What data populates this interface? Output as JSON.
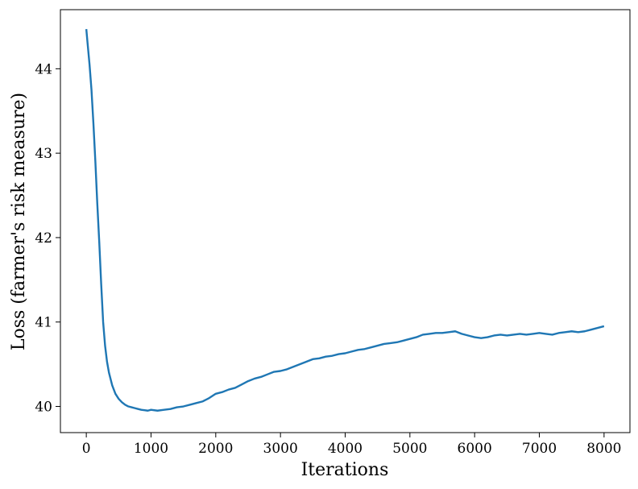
{
  "chart_data": {
    "type": "line",
    "title": "",
    "xlabel": "Iterations",
    "ylabel": "Loss (farmer's risk measure)",
    "xlim": [
      -400,
      8400
    ],
    "ylim": [
      39.69,
      44.7
    ],
    "xticks": [
      0,
      1000,
      2000,
      3000,
      4000,
      5000,
      6000,
      7000,
      8000
    ],
    "yticks": [
      40,
      41,
      42,
      43,
      44
    ],
    "grid": false,
    "legend": "none",
    "series": [
      {
        "color": "#1f77b4",
        "x": [
          0,
          20,
          50,
          80,
          110,
          140,
          170,
          200,
          230,
          260,
          290,
          320,
          350,
          400,
          450,
          500,
          550,
          600,
          650,
          700,
          750,
          800,
          850,
          900,
          950,
          1000,
          1100,
          1200,
          1300,
          1400,
          1500,
          1600,
          1700,
          1800,
          1900,
          2000,
          2100,
          2200,
          2300,
          2400,
          2500,
          2600,
          2700,
          2800,
          2900,
          3000,
          3100,
          3200,
          3300,
          3400,
          3500,
          3600,
          3700,
          3800,
          3900,
          4000,
          4100,
          4200,
          4300,
          4400,
          4500,
          4600,
          4700,
          4800,
          4900,
          5000,
          5100,
          5200,
          5300,
          5400,
          5500,
          5600,
          5700,
          5800,
          5900,
          6000,
          6100,
          6200,
          6300,
          6400,
          6500,
          6600,
          6700,
          6800,
          6900,
          7000,
          7100,
          7200,
          7300,
          7400,
          7500,
          7600,
          7700,
          7800,
          7900,
          8000
        ],
        "y": [
          44.47,
          44.3,
          44.05,
          43.75,
          43.35,
          42.9,
          42.4,
          41.95,
          41.45,
          41.0,
          40.72,
          40.53,
          40.4,
          40.25,
          40.15,
          40.09,
          40.05,
          40.02,
          40.0,
          39.99,
          39.98,
          39.97,
          39.96,
          39.955,
          39.95,
          39.96,
          39.95,
          39.96,
          39.97,
          39.99,
          40.0,
          40.02,
          40.04,
          40.06,
          40.1,
          40.15,
          40.17,
          40.2,
          40.22,
          40.26,
          40.3,
          40.33,
          40.35,
          40.38,
          40.41,
          40.42,
          40.44,
          40.47,
          40.5,
          40.53,
          40.56,
          40.57,
          40.59,
          40.6,
          40.62,
          40.63,
          40.65,
          40.67,
          40.68,
          40.7,
          40.72,
          40.74,
          40.75,
          40.76,
          40.78,
          40.8,
          40.82,
          40.85,
          40.86,
          40.87,
          40.87,
          40.88,
          40.89,
          40.86,
          40.84,
          40.82,
          40.81,
          40.82,
          40.84,
          40.85,
          40.84,
          40.85,
          40.86,
          40.85,
          40.86,
          40.87,
          40.86,
          40.85,
          40.87,
          40.88,
          40.89,
          40.88,
          40.89,
          40.91,
          40.93,
          40.95
        ]
      }
    ]
  }
}
